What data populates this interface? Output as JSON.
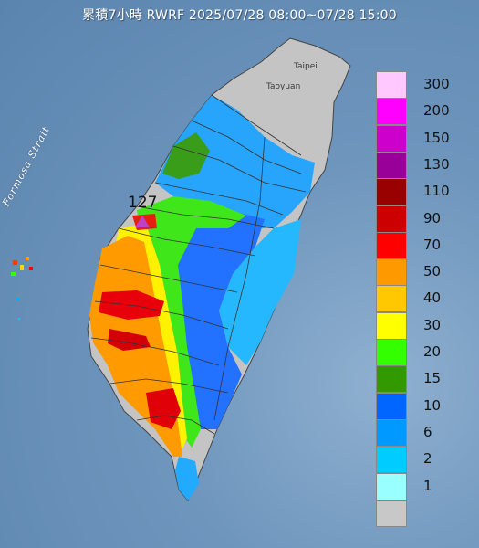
{
  "title": "累積7小時 RWRF 2025/07/28 08:00~07/28 15:00",
  "sea_label": "Formosa Strait",
  "city_labels": {
    "taipei": "Taipei",
    "taoyuan": "Taoyuan"
  },
  "max_marker": {
    "value": "127",
    "color": "#c040c8"
  },
  "legend": [
    {
      "label": "300",
      "color": "#ffc8ff"
    },
    {
      "label": "200",
      "color": "#ff00ff"
    },
    {
      "label": "150",
      "color": "#cc00cc"
    },
    {
      "label": "130",
      "color": "#990099"
    },
    {
      "label": "110",
      "color": "#990000"
    },
    {
      "label": "90",
      "color": "#cc0000"
    },
    {
      "label": "70",
      "color": "#ff0000"
    },
    {
      "label": "50",
      "color": "#ff9900"
    },
    {
      "label": "40",
      "color": "#ffc800"
    },
    {
      "label": "30",
      "color": "#ffff00"
    },
    {
      "label": "20",
      "color": "#33ff00"
    },
    {
      "label": "15",
      "color": "#339900"
    },
    {
      "label": "10",
      "color": "#0066ff"
    },
    {
      "label": "6",
      "color": "#0099ff"
    },
    {
      "label": "2",
      "color": "#00ccff"
    },
    {
      "label": "1",
      "color": "#99ffff"
    },
    {
      "label": "",
      "color": "#c8c8c8"
    }
  ]
}
